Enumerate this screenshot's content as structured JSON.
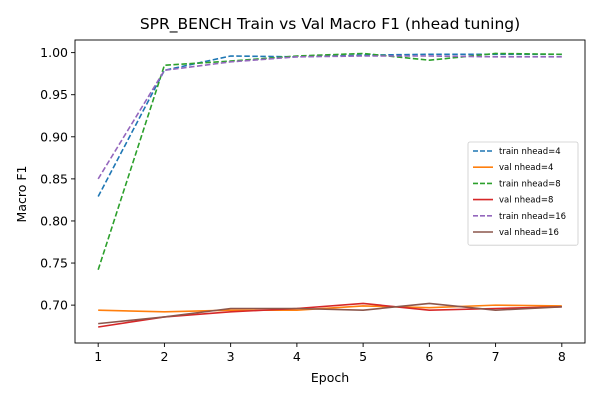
{
  "chart_data": {
    "type": "line",
    "title": "SPR_BENCH Train vs Val Macro F1 (nhead tuning)",
    "xlabel": "Epoch",
    "ylabel": "Macro F1",
    "x": [
      1,
      2,
      3,
      4,
      5,
      6,
      7,
      8
    ],
    "xlim": [
      0.65,
      8.35
    ],
    "ylim": [
      0.655,
      1.015
    ],
    "xticks": [
      1,
      2,
      3,
      4,
      5,
      6,
      7,
      8
    ],
    "yticks": [
      "0.70",
      "0.75",
      "0.80",
      "0.85",
      "0.90",
      "0.95",
      "1.00"
    ],
    "grid": false,
    "legend_position": "center-right",
    "series": [
      {
        "name": "train nhead=4",
        "color": "#1f77b4",
        "dash": true,
        "values": [
          0.829,
          0.979,
          0.996,
          0.995,
          0.997,
          0.998,
          0.998,
          0.998
        ]
      },
      {
        "name": "val nhead=4",
        "color": "#ff7f0e",
        "dash": false,
        "values": [
          0.694,
          0.692,
          0.694,
          0.694,
          0.699,
          0.697,
          0.7,
          0.699
        ]
      },
      {
        "name": "train nhead=8",
        "color": "#2ca02c",
        "dash": true,
        "values": [
          0.742,
          0.985,
          0.99,
          0.996,
          0.999,
          0.991,
          0.999,
          0.998
        ]
      },
      {
        "name": "val nhead=8",
        "color": "#d62728",
        "dash": false,
        "values": [
          0.674,
          0.686,
          0.692,
          0.696,
          0.702,
          0.694,
          0.696,
          0.698
        ]
      },
      {
        "name": "train nhead=16",
        "color": "#9467bd",
        "dash": true,
        "values": [
          0.85,
          0.979,
          0.989,
          0.995,
          0.996,
          0.996,
          0.995,
          0.995
        ]
      },
      {
        "name": "val nhead=16",
        "color": "#8c564b",
        "dash": false,
        "values": [
          0.678,
          0.686,
          0.696,
          0.696,
          0.694,
          0.702,
          0.694,
          0.698
        ]
      }
    ]
  }
}
